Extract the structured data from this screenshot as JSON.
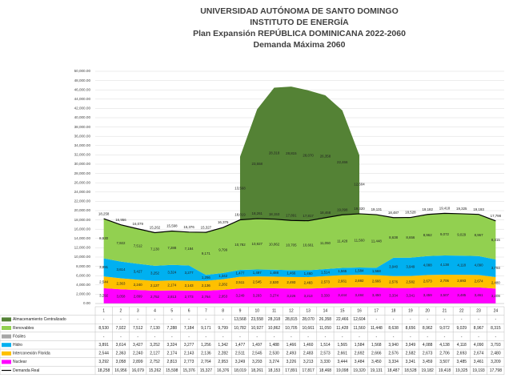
{
  "chart_data": {
    "type": "stacked_area",
    "title": [
      "UNIVERSIDAD AUTÓNOMA DE SANTO DOMINGO",
      "INSTITUTO DE ENERGÍA",
      "Plan Expansión REPÚBLICA DOMINICANA 2022-2060",
      "Demanda Máxima 2060"
    ],
    "categories": [
      "1",
      "2",
      "3",
      "4",
      "5",
      "6",
      "7",
      "8",
      "9",
      "10",
      "11",
      "12",
      "13",
      "14",
      "15",
      "16",
      "17",
      "18",
      "19",
      "20",
      "21",
      "22",
      "23",
      "24"
    ],
    "ylim": [
      0,
      50000
    ],
    "yticks": [
      {
        "value": 0,
        "label": "0.00"
      },
      {
        "value": 2000,
        "label": "2,000.00"
      },
      {
        "value": 4000,
        "label": "4,000.00"
      },
      {
        "value": 6000,
        "label": "6,000.00"
      },
      {
        "value": 8000,
        "label": "8,000.00"
      },
      {
        "value": 10000,
        "label": "10,000.00"
      },
      {
        "value": 12000,
        "label": "12,000.00"
      },
      {
        "value": 14000,
        "label": "14,000.00"
      },
      {
        "value": 16000,
        "label": "16,000.00"
      },
      {
        "value": 18000,
        "label": "18,000.00"
      },
      {
        "value": 20000,
        "label": "20,000.00"
      },
      {
        "value": 22000,
        "label": "22,000.00"
      },
      {
        "value": 24000,
        "label": "24,000.00"
      },
      {
        "value": 26000,
        "label": "26,000.00"
      },
      {
        "value": 28000,
        "label": "28,000.00"
      },
      {
        "value": 30000,
        "label": "30,000.00"
      },
      {
        "value": 32000,
        "label": "32,000.00"
      },
      {
        "value": 34000,
        "label": "34,000.00"
      },
      {
        "value": 36000,
        "label": "36,000.00"
      },
      {
        "value": 38000,
        "label": "38,000.00"
      },
      {
        "value": 40000,
        "label": "40,000.00"
      },
      {
        "value": 42000,
        "label": "42,000.00"
      },
      {
        "value": 44000,
        "label": "44,000.00"
      },
      {
        "value": 46000,
        "label": "46,000.00"
      },
      {
        "value": 48000,
        "label": "48,000.00"
      },
      {
        "value": 50000,
        "label": "50,000.00"
      }
    ],
    "grid": true,
    "series": [
      {
        "name": "Almacenamiento Centralizado",
        "type": "area",
        "color": "#548235",
        "values": [
          null,
          null,
          null,
          null,
          null,
          null,
          null,
          null,
          13568,
          23558,
          28318,
          28815,
          28070,
          26358,
          22466,
          12604,
          null,
          null,
          null,
          null,
          null,
          null,
          null,
          null
        ],
        "value_labels": [
          "-",
          "-",
          "-",
          "-",
          "-",
          "-",
          "-",
          "-",
          "13,568",
          "23,558",
          "28,318",
          "28,815",
          "28,070",
          "26,358",
          "22,466",
          "12,604",
          "-",
          "-",
          "-",
          "-",
          "-",
          "-",
          "-",
          "-"
        ]
      },
      {
        "name": "Renovables",
        "type": "area",
        "color": "#92d050",
        "values": [
          8530,
          7922,
          7512,
          7130,
          7288,
          7184,
          9171,
          9799,
          10782,
          10927,
          10862,
          10705,
          10661,
          11050,
          11428,
          11560,
          11448,
          8638,
          8656,
          8962,
          9072,
          9029,
          8967,
          8315
        ],
        "value_labels": [
          "8,530",
          "7,922",
          "7,512",
          "7,130",
          "7,288",
          "7,184",
          "9,171",
          "9,799",
          "10,782",
          "10,927",
          "10,862",
          "10,705",
          "10,661",
          "11,050",
          "11,428",
          "11,560",
          "11,448",
          "8,638",
          "8,656",
          "8,962",
          "9,072",
          "9,029",
          "8,967",
          "8,315"
        ]
      },
      {
        "name": "Fósiles",
        "type": "area",
        "color": "#a6a6a6",
        "values": [
          null,
          null,
          null,
          null,
          null,
          null,
          null,
          null,
          null,
          null,
          null,
          null,
          null,
          null,
          null,
          null,
          null,
          null,
          null,
          null,
          null,
          null,
          null,
          null
        ],
        "value_labels": [
          "-",
          "-",
          "-",
          "-",
          "-",
          "-",
          "-",
          "-",
          "-",
          "-",
          "-",
          "-",
          "-",
          "-",
          "-",
          "-",
          "-",
          "-",
          "-",
          "-",
          "-",
          "-",
          "-",
          "-"
        ]
      },
      {
        "name": "Hidro",
        "type": "area",
        "color": "#00b0f0",
        "values": [
          3891,
          3614,
          3427,
          3252,
          3324,
          3277,
          1256,
          1342,
          1477,
          1497,
          1488,
          1466,
          1460,
          1514,
          1565,
          1584,
          1568,
          3940,
          3949,
          4088,
          4138,
          4118,
          4090,
          3793
        ],
        "value_labels": [
          "3,891",
          "3,614",
          "3,427",
          "3,252",
          "3,324",
          "3,277",
          "1,256",
          "1,342",
          "1,477",
          "1,497",
          "1,488",
          "1,466",
          "1,460",
          "1,514",
          "1,565",
          "1,584",
          "1,568",
          "3,940",
          "3,949",
          "4,088",
          "4,138",
          "4,118",
          "4,090",
          "3,793"
        ]
      },
      {
        "name": "Interconexión Florida",
        "type": "area",
        "color": "#ffc000",
        "values": [
          2544,
          2363,
          2240,
          2127,
          2174,
          2143,
          2136,
          2282,
          2511,
          2545,
          2530,
          2493,
          2483,
          2573,
          2661,
          2692,
          2666,
          2576,
          2582,
          2673,
          2706,
          2693,
          2674,
          2480
        ],
        "value_labels": [
          "2,544",
          "2,363",
          "2,240",
          "2,127",
          "2,174",
          "2,143",
          "2,136",
          "2,282",
          "2,511",
          "2,545",
          "2,530",
          "2,493",
          "2,483",
          "2,573",
          "2,661",
          "2,692",
          "2,666",
          "2,576",
          "2,582",
          "2,673",
          "2,706",
          "2,693",
          "2,674",
          "2,480"
        ]
      },
      {
        "name": "Nuclear",
        "type": "area",
        "color": "#ff00ff",
        "values": [
          3292,
          3058,
          2899,
          2752,
          2813,
          2773,
          2764,
          2953,
          3249,
          3293,
          3274,
          3226,
          3213,
          3330,
          3444,
          3484,
          3450,
          3334,
          3341,
          3459,
          3507,
          3485,
          3461,
          3209
        ],
        "value_labels": [
          "3,292",
          "3,058",
          "2,899",
          "2,752",
          "2,813",
          "2,773",
          "2,764",
          "2,953",
          "3,249",
          "3,293",
          "3,274",
          "3,226",
          "3,213",
          "3,330",
          "3,444",
          "3,484",
          "3,450",
          "3,334",
          "3,341",
          "3,459",
          "3,507",
          "3,485",
          "3,461",
          "3,209"
        ]
      },
      {
        "name": "Demanda Real",
        "type": "line",
        "color": "#000000",
        "values": [
          18258,
          16956,
          16079,
          15262,
          15598,
          15376,
          15327,
          16376,
          18019,
          18261,
          18153,
          17891,
          17817,
          18468,
          19098,
          19320,
          19131,
          18487,
          18528,
          19182,
          19418,
          19325,
          19193,
          17798
        ],
        "value_labels": [
          "18,258",
          "16,956",
          "16,079",
          "15,262",
          "15,598",
          "15,376",
          "15,327",
          "16,376",
          "18,019",
          "18,261",
          "18,153",
          "17,891",
          "17,817",
          "18,468",
          "19,098",
          "19,320",
          "19,131",
          "18,487",
          "18,528",
          "19,182",
          "19,418",
          "19,325",
          "19,193",
          "17,798"
        ]
      }
    ]
  }
}
